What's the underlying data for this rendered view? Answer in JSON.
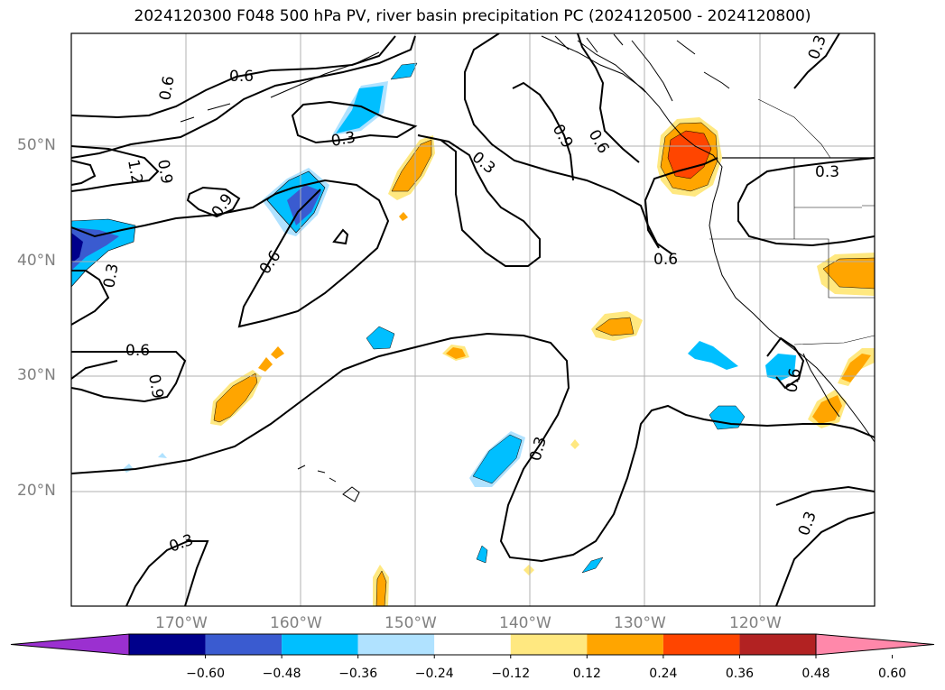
{
  "title": "2024120300 F048 500 hPa PV, river basin precipitation PC (2024120500 - 2024120800)",
  "lat_ticks": [
    "20°N",
    "30°N",
    "40°N",
    "50°N"
  ],
  "lon_ticks": [
    "170°W",
    "160°W",
    "150°W",
    "140°W",
    "130°W",
    "120°W"
  ],
  "contour_labels": [
    "0.6",
    "0.6",
    "0.3",
    "1.2",
    "0.9",
    "0.9",
    "0.3",
    "0.6",
    "0.3",
    "0.9",
    "0.6",
    "0.3",
    "0.6",
    "0.3",
    "0.6",
    "0.9",
    "0.3",
    "0.3",
    "0.3",
    "0.6"
  ],
  "colorbar": {
    "ticks": [
      "−0.60",
      "−0.48",
      "−0.36",
      "−0.24",
      "−0.12",
      "0.12",
      "0.24",
      "0.36",
      "0.48",
      "0.60"
    ],
    "colors": [
      "#9b30d0",
      "#00008b",
      "#3a5bd0",
      "#00bfff",
      "#b0e2ff",
      "#ffffff",
      "#ffe880",
      "#ffa500",
      "#ff4500",
      "#b22222",
      "#ff88aa"
    ]
  }
}
